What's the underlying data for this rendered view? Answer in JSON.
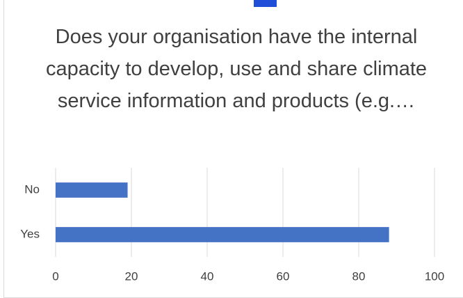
{
  "chart_data": {
    "type": "bar",
    "orientation": "horizontal",
    "title": "Does your organisation have the internal capacity to develop, use and share climate service information and products (e.g.…",
    "categories": [
      "Yes",
      "No"
    ],
    "values": [
      88,
      19
    ],
    "color": "#4472c4",
    "xlim": [
      0,
      100
    ],
    "xticks": [
      0,
      20,
      40,
      60,
      80,
      100
    ],
    "grid": true
  }
}
